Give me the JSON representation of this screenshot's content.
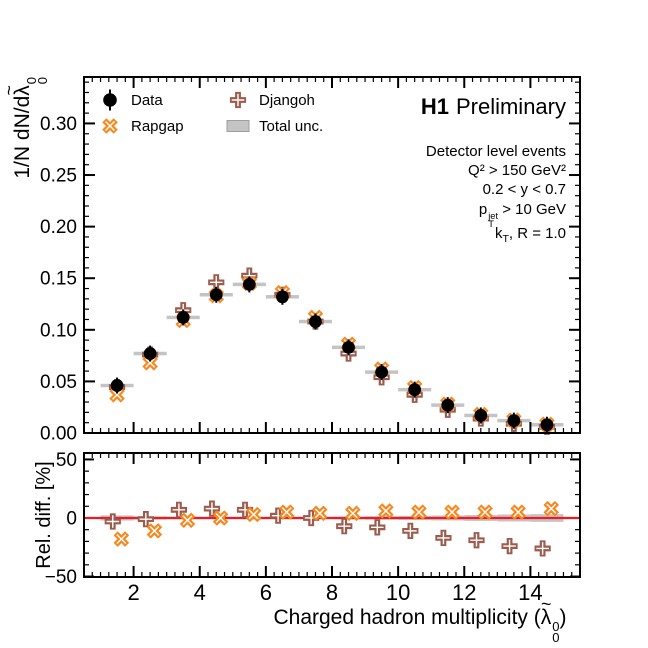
{
  "header": {
    "experiment": "H1",
    "status": "Preliminary"
  },
  "conditions": {
    "line1": "Detector level events",
    "line2": "Q² > 150 GeV²",
    "line3": "0.2 < y < 0.7",
    "line4_base": "p",
    "line4_sup": "jet",
    "line4_sub": "T",
    "line4_rest": " > 10 GeV",
    "line5_base": "k",
    "line5_sub": "T",
    "line5_rest": ", R = 1.0"
  },
  "labels": {
    "y_main": {
      "prefix": "1/N dN/d",
      "lambda": "λ",
      "tilde": "~",
      "sup": "0",
      "sub": "0"
    },
    "y_ratio": "Rel. diff. [%]",
    "x_axis": {
      "prefix": "Charged hadron multiplicity (",
      "lambda": "λ",
      "tilde": "~",
      "sup": "0",
      "sub": "0",
      "suffix": ")"
    }
  },
  "legend": {
    "items": [
      {
        "label": "Data",
        "marker": "circle"
      },
      {
        "label": "Rapgap",
        "marker": "x"
      },
      {
        "label": "Djangoh",
        "marker": "plus"
      },
      {
        "label": "Total unc.",
        "marker": "band"
      }
    ]
  },
  "chart_data": {
    "type": "scatter",
    "title": "H1 Preliminary",
    "xlabel": "Charged hadron multiplicity (lambda-tilde_0^0)",
    "x_range": [
      0.5,
      15.5
    ],
    "bin_centers": [
      1.5,
      2.5,
      3.5,
      4.5,
      5.5,
      6.5,
      7.5,
      8.5,
      9.5,
      10.5,
      11.5,
      12.5,
      13.5,
      14.5
    ],
    "bin_width": 1.0,
    "xticks": [
      2,
      4,
      6,
      8,
      10,
      12,
      14
    ],
    "colors": {
      "frame": "#000000",
      "data": "#000000",
      "rapgap": "#F8871E",
      "djangoh": "#9B5B4D",
      "band": "#C4C4C4",
      "band_border": "#9E9E9E",
      "zero_line": "#ED1C24"
    },
    "main_panel": {
      "ylabel": "1/N dN/d lambda-tilde_0^0",
      "yrange": [
        0,
        0.345
      ],
      "ytick_step": 0.05,
      "ytick_labels": [
        "0.00",
        "0.05",
        "0.10",
        "0.15",
        "0.20",
        "0.25",
        "0.30"
      ],
      "band_half_height": 0.0017,
      "series": [
        {
          "name": "Data",
          "marker": "circle",
          "values": [
            0.046,
            0.077,
            0.112,
            0.134,
            0.144,
            0.132,
            0.108,
            0.083,
            0.059,
            0.042,
            0.027,
            0.017,
            0.012,
            0.008
          ]
        },
        {
          "name": "Rapgap",
          "marker": "x",
          "values": [
            0.037,
            0.068,
            0.109,
            0.133,
            0.145,
            0.136,
            0.112,
            0.086,
            0.062,
            0.044,
            0.028,
            0.018,
            0.0125,
            0.0085
          ]
        },
        {
          "name": "Djangoh",
          "marker": "plus",
          "values": [
            0.0445,
            0.076,
            0.119,
            0.146,
            0.1525,
            0.134,
            0.108,
            0.077,
            0.054,
            0.037,
            0.0225,
            0.014,
            0.009,
            0.006
          ]
        }
      ]
    },
    "ratio_panel": {
      "ylabel": "Rel. diff. [%]",
      "yrange": [
        -50.4,
        55.5
      ],
      "ytick_major": [
        50,
        0,
        -50
      ],
      "ytick_labels": [
        "50",
        "0",
        "−50"
      ],
      "ytick_minor_step": 10,
      "band_half_heights": [
        2.2,
        1.4,
        1.1,
        1.0,
        1.0,
        1.0,
        1.0,
        1.2,
        1.5,
        1.8,
        2.1,
        2.5,
        3.0,
        3.3
      ],
      "series": [
        {
          "name": "Djangoh",
          "marker": "plus",
          "x_offset": -0.13,
          "values": [
            -3,
            -1,
            7,
            8,
            7,
            2,
            0,
            -7,
            -8,
            -11,
            -17,
            -19,
            -24,
            -26
          ]
        },
        {
          "name": "Rapgap",
          "marker": "x",
          "x_offset": 0.13,
          "values": [
            -18,
            -11,
            -2,
            0,
            3,
            5,
            4,
            4,
            6,
            5,
            5,
            5,
            5,
            8
          ]
        }
      ]
    }
  }
}
